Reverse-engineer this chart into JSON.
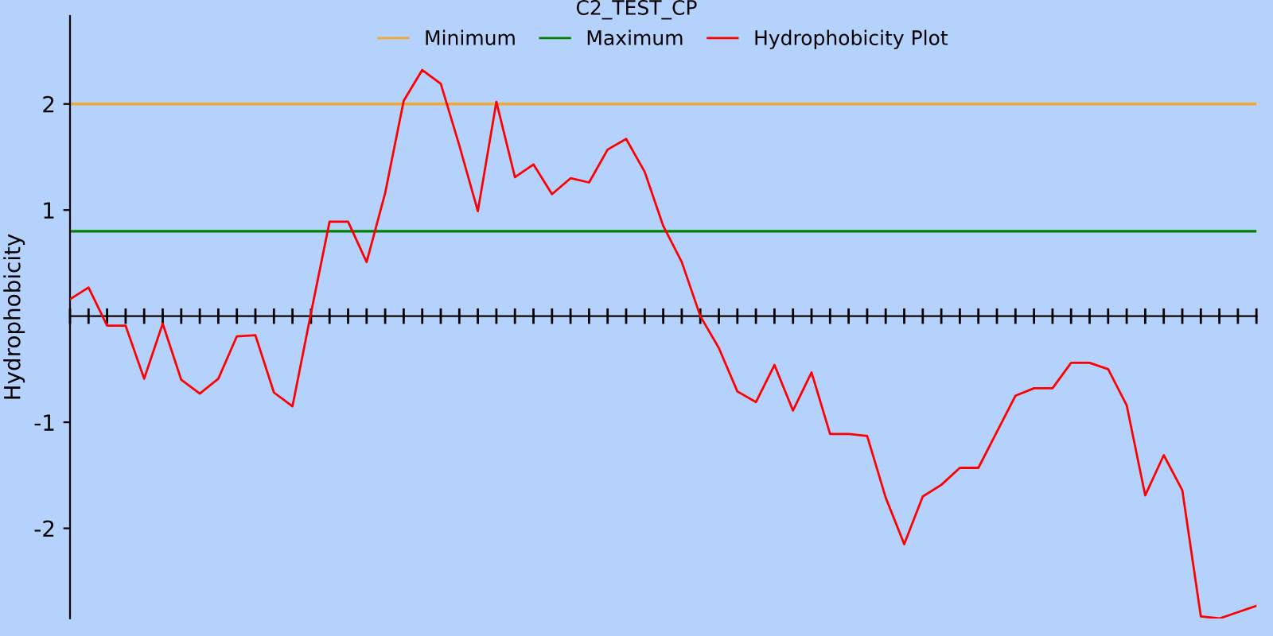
{
  "chart_data": {
    "type": "line",
    "title": "C2_TEST_CP",
    "ylabel": "Hydrophobicity",
    "categories": [
      null,
      null,
      null,
      null,
      null,
      null,
      null,
      null,
      null,
      null,
      null,
      null,
      null,
      null,
      null,
      null,
      null,
      null,
      null,
      null,
      null,
      null,
      null,
      null,
      null,
      null,
      null,
      null,
      null,
      null,
      null,
      null,
      null,
      null,
      null,
      null,
      null,
      null,
      null,
      null,
      null,
      null,
      null,
      null,
      null,
      null,
      null,
      null,
      null,
      null,
      null,
      null,
      null,
      null,
      null,
      null,
      null,
      null,
      null,
      null,
      null,
      null,
      null,
      null,
      null
    ],
    "series": [
      {
        "name": "Hydrophobicity Plot",
        "color": "#ff0000",
        "values": [
          0.16,
          0.27,
          -0.09,
          -0.09,
          -0.59,
          -0.07,
          -0.6,
          -0.73,
          -0.59,
          -0.19,
          -0.18,
          -0.72,
          -0.85,
          0.03,
          0.89,
          0.89,
          0.51,
          1.16,
          2.03,
          2.32,
          2.19,
          1.61,
          0.99,
          2.02,
          1.31,
          1.43,
          1.15,
          1.3,
          1.26,
          1.57,
          1.67,
          1.36,
          0.85,
          0.51,
          0.0,
          -0.3,
          -0.71,
          -0.81,
          -0.46,
          -0.89,
          -0.53,
          -1.11,
          -1.11,
          -1.13,
          -1.71,
          -2.15,
          -1.7,
          -1.59,
          -1.43,
          -1.43,
          -1.09,
          -0.75,
          -0.68,
          -0.68,
          -0.44,
          -0.44,
          -0.5,
          -0.84,
          -1.69,
          -1.31,
          -1.64,
          -2.83,
          -2.85,
          -2.79,
          -2.73
        ]
      }
    ],
    "ref_lines": [
      {
        "axis": "y",
        "value": 2,
        "label": "Minimum",
        "color": "#f0a830"
      },
      {
        "axis": "y",
        "value": 0.8,
        "label": "Maximum",
        "color": "#008000"
      }
    ],
    "ylim": [
      -2.85,
      2.83
    ],
    "yticks": [
      -2,
      -1,
      1,
      2
    ],
    "legend": "top",
    "grid": false,
    "marker": "none",
    "line_style": "solid"
  }
}
